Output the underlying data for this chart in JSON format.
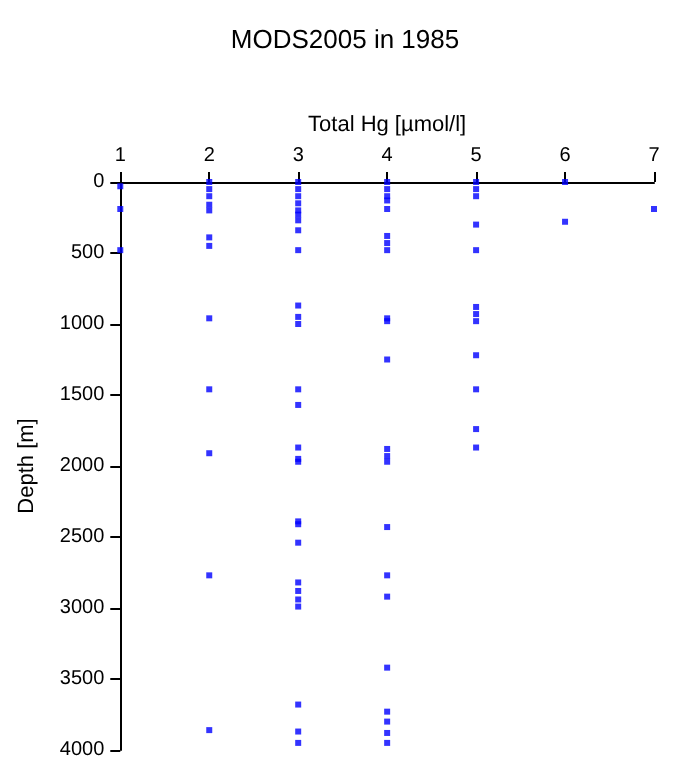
{
  "chart_data": {
    "type": "scatter",
    "title": "MODS2005 in 1985",
    "xlabel": "Total Hg [µmol/l]",
    "ylabel": "Depth [m]",
    "x": [
      1,
      1,
      1,
      2,
      2,
      2,
      2,
      2,
      2,
      2,
      2,
      2,
      2,
      2,
      2,
      3,
      3,
      3,
      3,
      3,
      3,
      3,
      3,
      3,
      3,
      3,
      3,
      3,
      3,
      3,
      3,
      3,
      3,
      3,
      3,
      3,
      3,
      3,
      3,
      3,
      3,
      3,
      4,
      4,
      4,
      4,
      4,
      4,
      4,
      4,
      4,
      4,
      4,
      4,
      4,
      4,
      4,
      4,
      4,
      4,
      4,
      4,
      4,
      4,
      5,
      5,
      5,
      5,
      5,
      5,
      5,
      5,
      5,
      5,
      5,
      5,
      6,
      6,
      7
    ],
    "values": [
      30,
      190,
      480,
      0,
      50,
      100,
      160,
      200,
      390,
      450,
      960,
      1460,
      1910,
      2770,
      3860,
      0,
      50,
      100,
      150,
      200,
      230,
      270,
      340,
      480,
      870,
      950,
      1000,
      1460,
      1570,
      1870,
      1950,
      1970,
      2390,
      2410,
      2540,
      2820,
      2880,
      2940,
      2990,
      3680,
      3870,
      3950,
      0,
      50,
      100,
      130,
      190,
      380,
      430,
      480,
      960,
      980,
      1250,
      1880,
      1930,
      1970,
      2430,
      2770,
      2920,
      3420,
      3730,
      3800,
      3880,
      3950,
      0,
      50,
      100,
      300,
      480,
      880,
      930,
      980,
      1220,
      1460,
      1740,
      1870,
      0,
      280,
      190
    ],
    "color": "#0000ff",
    "marker": "square",
    "xlim": [
      1,
      7
    ],
    "xticks": [
      1,
      2,
      3,
      4,
      5,
      6,
      7
    ],
    "ylim": [
      4000,
      0
    ],
    "yticks": [
      0,
      500,
      1000,
      1500,
      2000,
      2500,
      3000,
      3500,
      4000
    ],
    "grid": false
  }
}
